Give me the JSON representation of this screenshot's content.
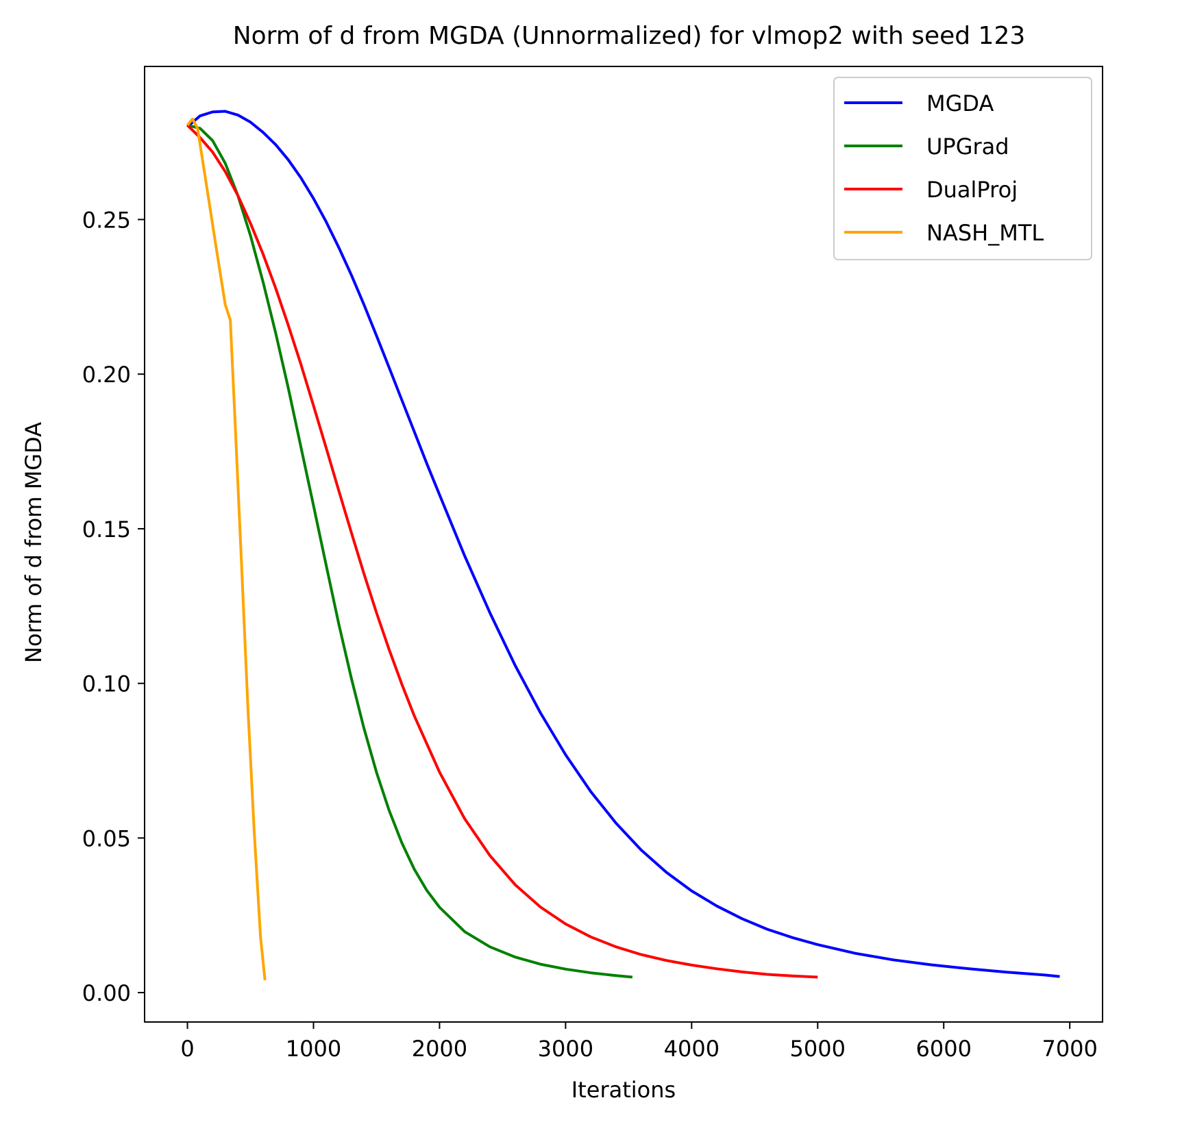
{
  "chart_data": {
    "type": "line",
    "title": "Norm of d from MGDA (Unnormalized) for vlmop2 with seed 123",
    "xlabel": "Iterations",
    "ylabel": "Norm of d from MGDA",
    "xlim": [
      -340,
      7260
    ],
    "ylim": [
      -0.0095,
      0.2995
    ],
    "x_ticks": [
      0,
      1000,
      2000,
      3000,
      4000,
      5000,
      6000,
      7000
    ],
    "x_tick_labels": [
      "0",
      "1000",
      "2000",
      "3000",
      "4000",
      "5000",
      "6000",
      "7000"
    ],
    "y_ticks": [
      0.0,
      0.05,
      0.1,
      0.15,
      0.2,
      0.25
    ],
    "y_tick_labels": [
      "0.00",
      "0.05",
      "0.10",
      "0.15",
      "0.20",
      "0.25"
    ],
    "grid": false,
    "legend_position": "top-right",
    "series": [
      {
        "name": "MGDA",
        "color": "#0000ff",
        "x": [
          0,
          100,
          200,
          300,
          400,
          500,
          600,
          700,
          800,
          900,
          1000,
          1100,
          1200,
          1300,
          1400,
          1500,
          1600,
          1700,
          1800,
          1900,
          2000,
          2200,
          2400,
          2600,
          2800,
          3000,
          3200,
          3400,
          3600,
          3800,
          4000,
          4200,
          4400,
          4600,
          4800,
          5000,
          5300,
          5600,
          5900,
          6200,
          6500,
          6800,
          6920
        ],
        "y": [
          0.28,
          0.2835,
          0.2848,
          0.285,
          0.2838,
          0.2815,
          0.2782,
          0.2742,
          0.2693,
          0.2635,
          0.2568,
          0.2493,
          0.241,
          0.2321,
          0.2225,
          0.2124,
          0.2021,
          0.1917,
          0.1814,
          0.171,
          0.161,
          0.1412,
          0.1228,
          0.1058,
          0.0905,
          0.0769,
          0.065,
          0.0548,
          0.0461,
          0.0389,
          0.0329,
          0.028,
          0.0239,
          0.0205,
          0.0178,
          0.0155,
          0.0127,
          0.0106,
          0.009,
          0.0077,
          0.0066,
          0.0057,
          0.0052
        ]
      },
      {
        "name": "UPGrad",
        "color": "#008000",
        "x": [
          0,
          100,
          200,
          300,
          400,
          500,
          600,
          700,
          800,
          900,
          1000,
          1100,
          1200,
          1300,
          1400,
          1500,
          1600,
          1700,
          1800,
          1900,
          2000,
          2200,
          2400,
          2600,
          2800,
          3000,
          3200,
          3400,
          3530
        ],
        "y": [
          0.2805,
          0.2795,
          0.2755,
          0.2682,
          0.2578,
          0.2448,
          0.2298,
          0.2133,
          0.1955,
          0.1765,
          0.1575,
          0.1383,
          0.1193,
          0.1017,
          0.0855,
          0.0712,
          0.0589,
          0.0485,
          0.0399,
          0.033,
          0.0276,
          0.0197,
          0.0148,
          0.0115,
          0.0092,
          0.0076,
          0.0064,
          0.0055,
          0.005
        ]
      },
      {
        "name": "DualProj",
        "color": "#ff0000",
        "x": [
          0,
          100,
          200,
          300,
          400,
          500,
          600,
          700,
          800,
          900,
          1000,
          1100,
          1200,
          1300,
          1400,
          1500,
          1600,
          1700,
          1800,
          2000,
          2200,
          2400,
          2600,
          2800,
          3000,
          3200,
          3400,
          3600,
          3800,
          4000,
          4200,
          4400,
          4600,
          4800,
          5000
        ],
        "y": [
          0.2805,
          0.2765,
          0.2718,
          0.2655,
          0.2578,
          0.2488,
          0.2388,
          0.2278,
          0.2158,
          0.2032,
          0.1898,
          0.1762,
          0.1624,
          0.1488,
          0.1355,
          0.1228,
          0.1109,
          0.0998,
          0.0895,
          0.0713,
          0.0562,
          0.0443,
          0.0349,
          0.0277,
          0.0222,
          0.018,
          0.0148,
          0.0123,
          0.0104,
          0.0089,
          0.0077,
          0.0067,
          0.0059,
          0.0054,
          0.005
        ]
      },
      {
        "name": "NASH_MTL",
        "color": "#ffa500",
        "x": [
          0,
          40,
          80,
          140,
          220,
          300,
          340,
          380,
          430,
          480,
          530,
          580,
          615
        ],
        "y": [
          0.2805,
          0.2825,
          0.2795,
          0.264,
          0.243,
          0.2225,
          0.2175,
          0.183,
          0.138,
          0.092,
          0.052,
          0.018,
          0.004
        ]
      }
    ]
  }
}
